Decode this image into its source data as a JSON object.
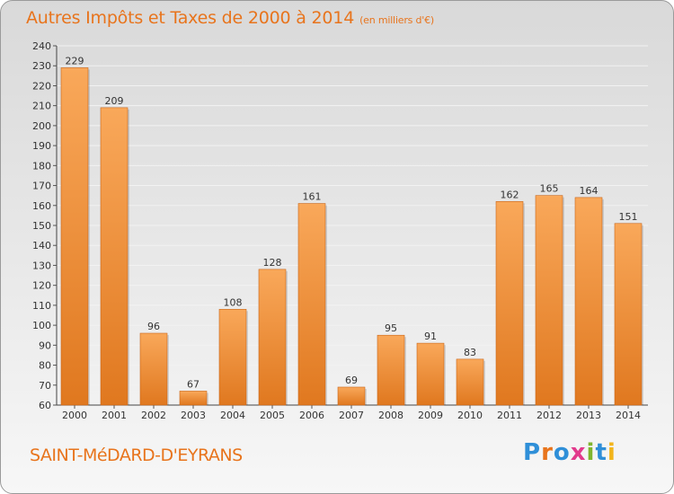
{
  "header": {
    "title": "Autres Impôts et Taxes de 2000 à 2014",
    "subtitle": "(en milliers d'€)"
  },
  "footer": {
    "commune": "SAINT-MéDARD-D'EYRANS",
    "logo_letters": [
      "P",
      "r",
      "o",
      "x",
      "i",
      "t",
      "i"
    ]
  },
  "colors": {
    "title": "#e8741c",
    "bar_top": "#f9a85a",
    "bar_bottom": "#e0781f",
    "gridline": "#f2f2f2"
  },
  "chart_data": {
    "type": "bar",
    "title": "Autres Impôts et Taxes de 2000 à 2014",
    "xlabel": "",
    "ylabel": "",
    "ylim": [
      60,
      240
    ],
    "ytick_step": 10,
    "grid": true,
    "categories": [
      "2000",
      "2001",
      "2002",
      "2003",
      "2004",
      "2005",
      "2006",
      "2007",
      "2008",
      "2009",
      "2010",
      "2011",
      "2012",
      "2013",
      "2014"
    ],
    "values": [
      229,
      209,
      96,
      67,
      108,
      128,
      161,
      69,
      95,
      91,
      83,
      162,
      165,
      164,
      151
    ]
  }
}
